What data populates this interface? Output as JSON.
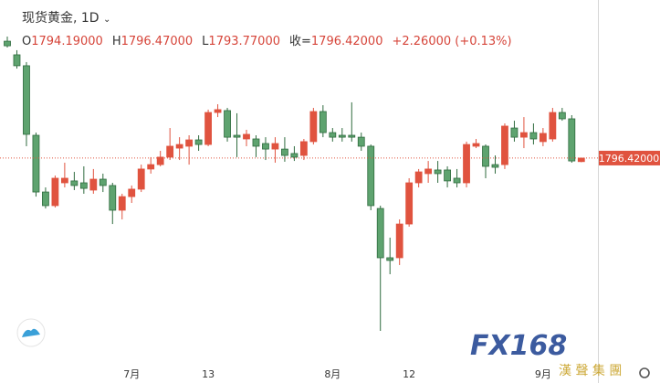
{
  "chart_data": {
    "type": "candlestick",
    "title": "现货黄金, 1D",
    "ohlc_header": [
      {
        "label": "O",
        "value": "1794.19000"
      },
      {
        "label": "H",
        "value": "1796.47000"
      },
      {
        "label": "L",
        "value": "1793.77000"
      },
      {
        "label": "收=",
        "value": "1796.42000"
      },
      {
        "label": "",
        "value": "+2.26000 (+0.13%)"
      }
    ],
    "last_price_label": "1796.42000",
    "categories": [
      null,
      null,
      null,
      null,
      null,
      null,
      null,
      null,
      null,
      null,
      null,
      null,
      null,
      "7月",
      null,
      null,
      null,
      null,
      null,
      null,
      null,
      "13",
      null,
      null,
      null,
      null,
      null,
      null,
      null,
      null,
      null,
      null,
      null,
      null,
      "8月",
      null,
      null,
      null,
      null,
      null,
      null,
      null,
      "12",
      null,
      null,
      null,
      null,
      null,
      null,
      null,
      null,
      null,
      null,
      null,
      null,
      null,
      "9月",
      null,
      null,
      null,
      null
    ],
    "series": [
      {
        "open": [
          1870.2,
          1861.6,
          1854.7,
          1810.8,
          1775.0,
          1766.4,
          1780.8,
          1782.0,
          1780.8,
          1776.2,
          1783.1,
          1779.1,
          1763.5,
          1772.1,
          1776.8,
          1789.5,
          1792.3,
          1797.0,
          1802.7,
          1803.9,
          1807.9,
          1805.0,
          1825.2,
          1826.4,
          1810.8,
          1808.5,
          1808.5,
          1805.6,
          1802.1,
          1802.1,
          1799.3,
          1798.1,
          1806.8,
          1825.8,
          1812.5,
          1810.8,
          1810.8,
          1809.6,
          1803.9,
          1764.6,
          1733.5,
          1733.5,
          1754.8,
          1780.8,
          1786.6,
          1788.9,
          1788.9,
          1783.7,
          1780.8,
          1803.9,
          1803.9,
          1792.3,
          1792.3,
          1815.4,
          1809.6,
          1812.5,
          1806.8,
          1808.5,
          1825.2,
          1821.2,
          1794.19
        ],
        "high": [
          1873.1,
          1864.5,
          1857.0,
          1812.5,
          1777.9,
          1785.4,
          1793.5,
          1787.7,
          1791.2,
          1789.5,
          1786.6,
          1780.8,
          1773.9,
          1779.1,
          1792.3,
          1797.0,
          1801.0,
          1815.4,
          1809.6,
          1810.8,
          1810.8,
          1827.0,
          1830.4,
          1828.1,
          1824.7,
          1814.3,
          1810.8,
          1809.6,
          1809.6,
          1809.6,
          1803.9,
          1808.5,
          1828.1,
          1829.8,
          1815.4,
          1815.4,
          1831.6,
          1812.5,
          1805.0,
          1766.4,
          1746.2,
          1757.7,
          1783.7,
          1789.5,
          1794.6,
          1794.6,
          1791.2,
          1789.5,
          1806.8,
          1808.5,
          1805.0,
          1798.1,
          1818.3,
          1820.0,
          1822.3,
          1818.3,
          1815.4,
          1828.1,
          1828.1,
          1823.5,
          1796.47
        ],
        "low": [
          1866.2,
          1852.9,
          1803.9,
          1772.1,
          1764.6,
          1765.2,
          1777.9,
          1776.2,
          1773.9,
          1773.9,
          1775.0,
          1754.8,
          1757.7,
          1768.1,
          1775.0,
          1786.6,
          1791.2,
          1795.2,
          1795.2,
          1792.3,
          1801.0,
          1803.9,
          1822.3,
          1806.8,
          1797.0,
          1803.9,
          1797.0,
          1795.2,
          1793.5,
          1794.1,
          1794.6,
          1795.2,
          1805.0,
          1809.6,
          1806.8,
          1806.8,
          1806.8,
          1801.0,
          1763.5,
          1687.3,
          1723.1,
          1728.9,
          1753.1,
          1777.9,
          1780.8,
          1780.8,
          1777.9,
          1777.9,
          1777.9,
          1802.7,
          1783.7,
          1786.6,
          1789.5,
          1806.8,
          1802.7,
          1805.0,
          1803.9,
          1806.8,
          1820.0,
          1793.5,
          1793.77
        ],
        "close": [
          1867.3,
          1854.7,
          1811.4,
          1775.0,
          1766.4,
          1783.7,
          1783.7,
          1779.1,
          1777.3,
          1783.1,
          1779.1,
          1763.5,
          1772.1,
          1776.8,
          1789.5,
          1792.3,
          1797.0,
          1803.9,
          1805.0,
          1807.9,
          1805.0,
          1825.2,
          1827.0,
          1809.6,
          1809.6,
          1811.4,
          1803.9,
          1802.1,
          1805.6,
          1798.1,
          1797.0,
          1806.8,
          1825.8,
          1812.5,
          1809.6,
          1809.6,
          1809.6,
          1803.9,
          1766.4,
          1733.5,
          1731.8,
          1754.8,
          1780.8,
          1787.7,
          1789.5,
          1786.6,
          1782.0,
          1780.8,
          1805.0,
          1805.6,
          1791.2,
          1790.6,
          1816.6,
          1809.6,
          1812.5,
          1808.5,
          1812.0,
          1825.2,
          1821.2,
          1794.6,
          1796.42
        ]
      }
    ],
    "up_color": "#e0533f",
    "down_color": "#5ea36f",
    "ylim": [
      1665.4,
      1896.2
    ],
    "watermark": {
      "logo": "FX168",
      "company": "漢 聲 集 團"
    }
  }
}
